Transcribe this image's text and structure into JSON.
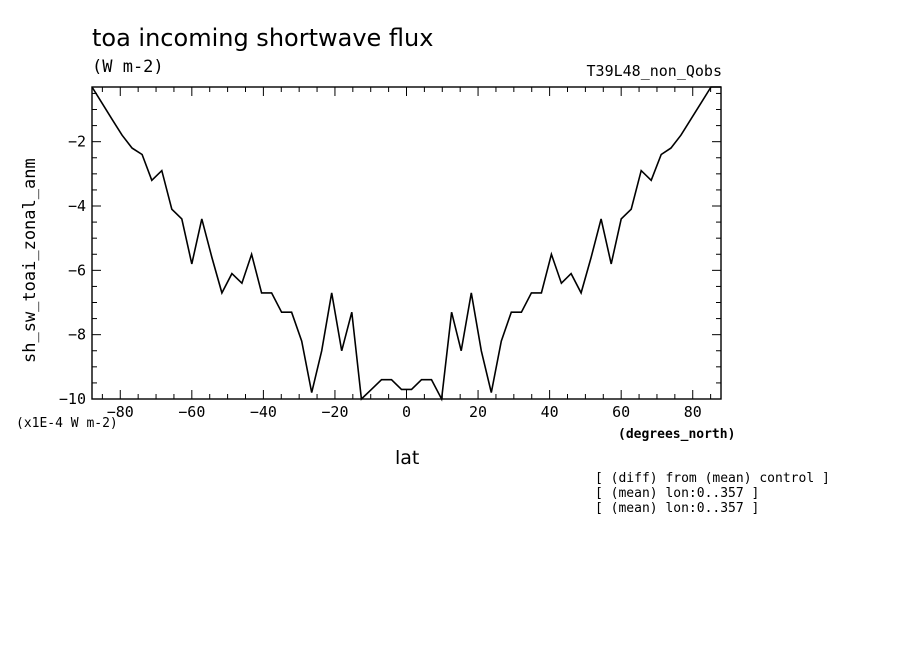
{
  "header": {
    "title": "toa incoming shortwave flux",
    "units": "(W m-2)",
    "run_id": "T39L48_non_Qobs"
  },
  "axis_text": {
    "ylabel": "sh_sw_toai_zonal_anm",
    "y_scale": "(x1E-4 W m-2)",
    "xlabel": "lat",
    "x_units": "(degrees_north)"
  },
  "notes": [
    "[ (diff) from (mean) control ]",
    "[ (mean) lon:0..357 ]",
    "[ (mean) lon:0..357 ]"
  ],
  "chart_data": {
    "type": "line",
    "title": "toa incoming shortwave flux",
    "xlabel": "lat",
    "ylabel": "sh_sw_toai_zonal_anm",
    "xlim": [
      -87.9,
      87.9
    ],
    "ylim": [
      -10,
      -0.3
    ],
    "xticks": [
      -80,
      -60,
      -40,
      -20,
      0,
      20,
      40,
      60,
      80
    ],
    "yticks": [
      -10,
      -8,
      -6,
      -4,
      -2
    ],
    "series": [
      {
        "color": "#000000",
        "x": [
          -87.9,
          -85.1,
          -82.3,
          -79.5,
          -76.7,
          -73.9,
          -71.2,
          -68.4,
          -65.6,
          -62.8,
          -60.0,
          -57.2,
          -54.4,
          -51.6,
          -48.8,
          -46.0,
          -43.3,
          -40.5,
          -37.7,
          -34.9,
          -32.1,
          -29.3,
          -26.5,
          -23.7,
          -20.9,
          -18.1,
          -15.3,
          -12.6,
          -9.8,
          -7.0,
          -4.2,
          -1.4,
          1.4,
          4.2,
          7.0,
          9.8,
          12.6,
          15.3,
          18.1,
          20.9,
          23.7,
          26.5,
          29.3,
          32.1,
          34.9,
          37.7,
          40.5,
          43.3,
          46.0,
          48.8,
          51.6,
          54.4,
          57.2,
          60.0,
          62.8,
          65.6,
          68.4,
          71.2,
          73.9,
          76.7,
          79.5,
          82.3,
          85.1,
          87.9
        ],
        "y": [
          -0.3,
          -0.8,
          -1.3,
          -1.8,
          -2.2,
          -2.4,
          -3.2,
          -2.9,
          -4.1,
          -4.4,
          -5.8,
          -4.4,
          -5.6,
          -6.7,
          -6.1,
          -6.4,
          -5.5,
          -6.7,
          -6.7,
          -7.3,
          -7.3,
          -8.2,
          -9.8,
          -8.5,
          -6.7,
          -8.5,
          -7.3,
          -10.0,
          -9.7,
          -9.4,
          -9.4,
          -9.7,
          -9.7,
          -9.4,
          -9.4,
          -10.0,
          -7.3,
          -8.5,
          -6.7,
          -8.5,
          -9.8,
          -8.2,
          -7.3,
          -7.3,
          -6.7,
          -6.7,
          -5.5,
          -6.4,
          -6.1,
          -6.7,
          -5.6,
          -4.4,
          -5.8,
          -4.4,
          -4.1,
          -2.9,
          -3.2,
          -2.4,
          -2.2,
          -1.8,
          -1.3,
          -0.8,
          -0.3,
          -0.3
        ]
      }
    ]
  }
}
